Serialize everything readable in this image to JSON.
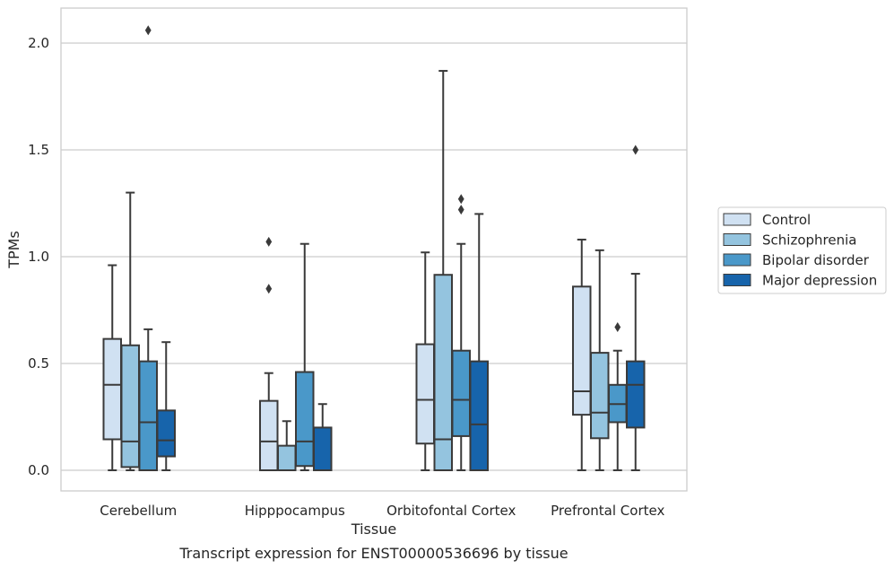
{
  "chart_data": {
    "type": "boxplot",
    "xlabel": "Tissue",
    "ylabel": "TPMs",
    "caption": "Transcript expression for ENST00000536696 by tissue",
    "ylim": [
      -0.1,
      2.17
    ],
    "yticks": [
      0.0,
      0.5,
      1.0,
      1.5,
      2.0
    ],
    "ytick_labels": [
      "0.0",
      "0.5",
      "1.0",
      "1.5",
      "2.0"
    ],
    "grid": "horizontal",
    "legend_position": "right",
    "categories": [
      "Cerebellum",
      "Hipppocampus",
      "Orbitofontal Cortex",
      "Prefrontal Cortex"
    ],
    "series": [
      {
        "name": "Control",
        "color": "#d0e1f2",
        "boxes": [
          {
            "whislo": 0.0,
            "q1": 0.145,
            "med": 0.4,
            "q3": 0.615,
            "whishi": 0.96,
            "fliers": []
          },
          {
            "whislo": 0.0,
            "q1": 0.0,
            "med": 0.135,
            "q3": 0.325,
            "whishi": 0.455,
            "fliers": [
              0.85,
              1.07
            ]
          },
          {
            "whislo": 0.0,
            "q1": 0.125,
            "med": 0.33,
            "q3": 0.59,
            "whishi": 1.02,
            "fliers": []
          },
          {
            "whislo": 0.0,
            "q1": 0.26,
            "med": 0.37,
            "q3": 0.86,
            "whishi": 1.08,
            "fliers": []
          }
        ]
      },
      {
        "name": "Schizophrenia",
        "color": "#94c4df",
        "boxes": [
          {
            "whislo": 0.0,
            "q1": 0.015,
            "med": 0.135,
            "q3": 0.585,
            "whishi": 1.3,
            "fliers": []
          },
          {
            "whislo": 0.0,
            "q1": 0.0,
            "med": 0.0,
            "q3": 0.115,
            "whishi": 0.23,
            "fliers": []
          },
          {
            "whislo": 0.0,
            "q1": 0.0,
            "med": 0.145,
            "q3": 0.915,
            "whishi": 1.87,
            "fliers": []
          },
          {
            "whislo": 0.0,
            "q1": 0.15,
            "med": 0.27,
            "q3": 0.55,
            "whishi": 1.03,
            "fliers": []
          }
        ]
      },
      {
        "name": "Bipolar disorder",
        "color": "#4a98c9",
        "boxes": [
          {
            "whislo": 0.0,
            "q1": 0.0,
            "med": 0.225,
            "q3": 0.51,
            "whishi": 0.66,
            "fliers": [
              2.06
            ]
          },
          {
            "whislo": 0.0,
            "q1": 0.02,
            "med": 0.135,
            "q3": 0.46,
            "whishi": 1.06,
            "fliers": []
          },
          {
            "whislo": 0.0,
            "q1": 0.16,
            "med": 0.33,
            "q3": 0.56,
            "whishi": 1.06,
            "fliers": [
              1.22,
              1.27
            ]
          },
          {
            "whislo": 0.0,
            "q1": 0.225,
            "med": 0.31,
            "q3": 0.4,
            "whishi": 0.56,
            "fliers": [
              0.67
            ]
          }
        ]
      },
      {
        "name": "Major depression",
        "color": "#1764ab",
        "boxes": [
          {
            "whislo": 0.0,
            "q1": 0.065,
            "med": 0.14,
            "q3": 0.28,
            "whishi": 0.6,
            "fliers": []
          },
          {
            "whislo": 0.0,
            "q1": 0.0,
            "med": 0.0,
            "q3": 0.2,
            "whishi": 0.31,
            "fliers": []
          },
          {
            "whislo": 0.0,
            "q1": 0.0,
            "med": 0.215,
            "q3": 0.51,
            "whishi": 1.2,
            "fliers": []
          },
          {
            "whislo": 0.0,
            "q1": 0.2,
            "med": 0.4,
            "q3": 0.51,
            "whishi": 0.92,
            "fliers": [
              1.5
            ]
          }
        ]
      }
    ]
  }
}
